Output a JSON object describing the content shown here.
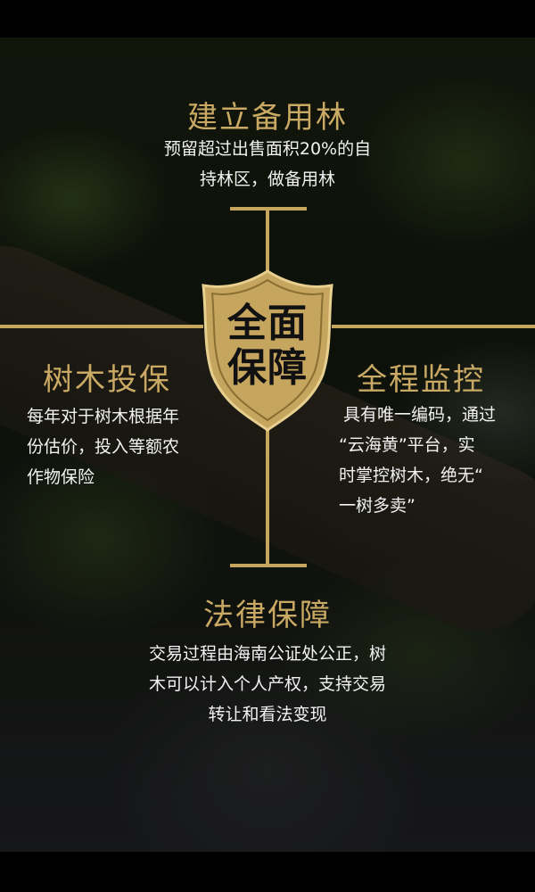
{
  "center_badge": {
    "line1": "全面",
    "line2": "保障"
  },
  "sections": {
    "top": {
      "title": "建立备用林",
      "desc_line1": "预留超过出售面积20%的自",
      "desc_line2": "持林区，做备用林"
    },
    "left": {
      "title": "树木投保",
      "desc_line1": "每年对于树木根据年",
      "desc_line2": "份估价，投入等额农",
      "desc_line3": "作物保险"
    },
    "right": {
      "title": "全程监控",
      "desc_line1": "具有唯一编码，通过",
      "desc_line2": "“云海黄”平台，实",
      "desc_line3": "时掌控树木，绝无“",
      "desc_line4": "一树多卖”"
    },
    "bottom": {
      "title": "法律保障",
      "desc_line1": "交易过程由海南公证处公正，树",
      "desc_line2": "木可以计入个人产权，支持交易",
      "desc_line3": "转让和看法变现"
    }
  },
  "colors": {
    "accent_gold": "#c9a963",
    "text_white": "#f2f2f2",
    "band_black": "#000000"
  },
  "icons": {
    "center": "shield-icon"
  }
}
